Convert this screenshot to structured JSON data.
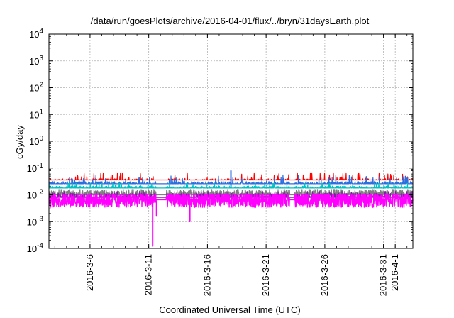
{
  "chart_data": {
    "type": "line",
    "title": "/data/run/goesPlots/archive/2016-04-01/flux/../bryn/31daysEarth.plot",
    "xlabel": "Coordinated Universal Time (UTC)",
    "ylabel": "cGy/day",
    "y_scale": "log",
    "ylim": [
      0.0001,
      10000
    ],
    "y_ticks": [
      {
        "value": 0.0001,
        "base": "10",
        "exp": "-4"
      },
      {
        "value": 0.001,
        "base": "10",
        "exp": "-3"
      },
      {
        "value": 0.01,
        "base": "10",
        "exp": "-2"
      },
      {
        "value": 0.1,
        "base": "10",
        "exp": "-1"
      },
      {
        "value": 1,
        "base": "10",
        "exp": "0"
      },
      {
        "value": 10,
        "base": "10",
        "exp": "1"
      },
      {
        "value": 100,
        "base": "10",
        "exp": "2"
      },
      {
        "value": 1000,
        "base": "10",
        "exp": "3"
      },
      {
        "value": 10000,
        "base": "10",
        "exp": "4"
      }
    ],
    "xlim": [
      "2016-03-02T12:00",
      "2016-04-02T12:00"
    ],
    "x_ticks": [
      {
        "value": "2016-03-06",
        "label": "2016-3-6"
      },
      {
        "value": "2016-03-11",
        "label": "2016-3-11"
      },
      {
        "value": "2016-03-16",
        "label": "2016-3-16"
      },
      {
        "value": "2016-03-21",
        "label": "2016-3-21"
      },
      {
        "value": "2016-03-26",
        "label": "2016-3-26"
      },
      {
        "value": "2016-03-31",
        "label": "2016-3-31"
      },
      {
        "value": "2016-04-01",
        "label": "2016-4-1"
      }
    ],
    "grid": true,
    "series_colors": [
      "#ff0000",
      "#2a6ee0",
      "#00c0c0",
      "#808080",
      "#7a1fa0",
      "#ff00ff"
    ],
    "series": [
      {
        "color": "#ff0000",
        "typical": 0.028,
        "min": 0.018,
        "max": 0.07
      },
      {
        "color": "#2a6ee0",
        "typical": 0.022,
        "min": 0.013,
        "max": 0.08
      },
      {
        "color": "#00c0c0",
        "typical": 0.015,
        "min": 0.009,
        "max": 0.03
      },
      {
        "color": "#808080",
        "typical": 0.009,
        "min": 0.005,
        "max": 0.018
      },
      {
        "color": "#7a1fa0",
        "typical": 0.007,
        "min": 0.004,
        "max": 0.015
      },
      {
        "color": "#ff00ff",
        "typical": 0.006,
        "min": 0.00012,
        "max": 0.012
      }
    ],
    "notable_points": [
      {
        "series": 5,
        "x": "2016-03-11T08:00",
        "y": 0.00012
      },
      {
        "series": 5,
        "x": "2016-03-11T16:00",
        "y": 0.0016
      },
      {
        "series": 5,
        "x": "2016-03-14T12:00",
        "y": 0.001
      },
      {
        "series": 1,
        "x": "2016-03-18T00:00",
        "y": 0.08
      }
    ]
  }
}
